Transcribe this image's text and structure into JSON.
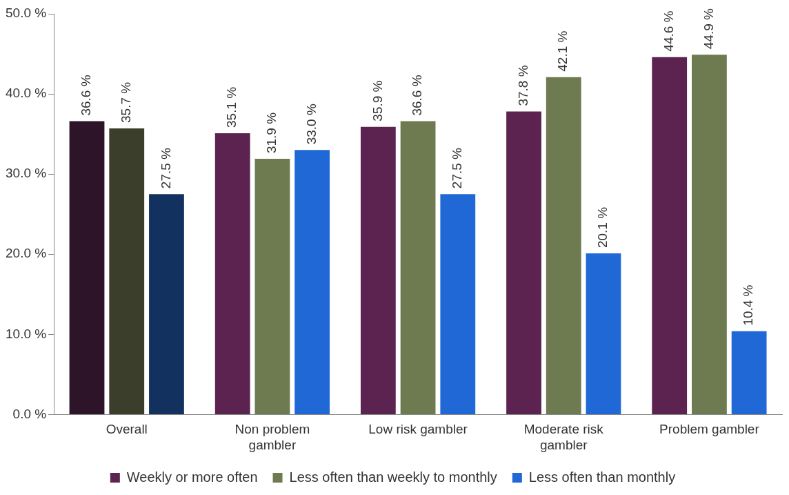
{
  "chart_data": {
    "type": "bar",
    "categories": [
      "Overall",
      "Non problem gambler",
      "Low risk gambler",
      "Moderate risk gambler",
      "Problem gambler"
    ],
    "series": [
      {
        "name": "Weekly or more often",
        "color": "#5c2350",
        "colors": [
          "#2e1428",
          "#5c2350",
          "#5c2350",
          "#5c2350",
          "#5c2350"
        ],
        "values": [
          36.6,
          35.1,
          35.9,
          37.8,
          44.6
        ],
        "value_labels": [
          "36.6 %",
          "35.1 %",
          "35.9 %",
          "37.8 %",
          "44.6 %"
        ]
      },
      {
        "name": "Less often than weekly to monthly",
        "color": "#6e7a50",
        "colors": [
          "#3a3e2a",
          "#6e7a50",
          "#6e7a50",
          "#6e7a50",
          "#6e7a50"
        ],
        "values": [
          35.7,
          31.9,
          36.6,
          42.1,
          44.9
        ],
        "value_labels": [
          "35.7 %",
          "31.9 %",
          "36.6 %",
          "42.1 %",
          "44.9 %"
        ]
      },
      {
        "name": "Less often than monthly",
        "color": "#1f68d6",
        "colors": [
          "#13315f",
          "#1f68d6",
          "#1f68d6",
          "#1f68d6",
          "#1f68d6"
        ],
        "values": [
          27.5,
          33.0,
          27.5,
          20.1,
          10.4
        ],
        "value_labels": [
          "27.5 %",
          "33.0 %",
          "27.5 %",
          "20.1 %",
          "10.4 %"
        ]
      }
    ],
    "ylim": [
      0,
      50
    ],
    "yticks": [
      {
        "value": 0,
        "label": "0.0 %"
      },
      {
        "value": 10,
        "label": "10.0 %"
      },
      {
        "value": 20,
        "label": "20.0 %"
      },
      {
        "value": 30,
        "label": "30.0 %"
      },
      {
        "value": 40,
        "label": "40.0 %"
      },
      {
        "value": 50,
        "label": "50.0 %"
      }
    ],
    "grid": false,
    "legend": "bottom"
  }
}
